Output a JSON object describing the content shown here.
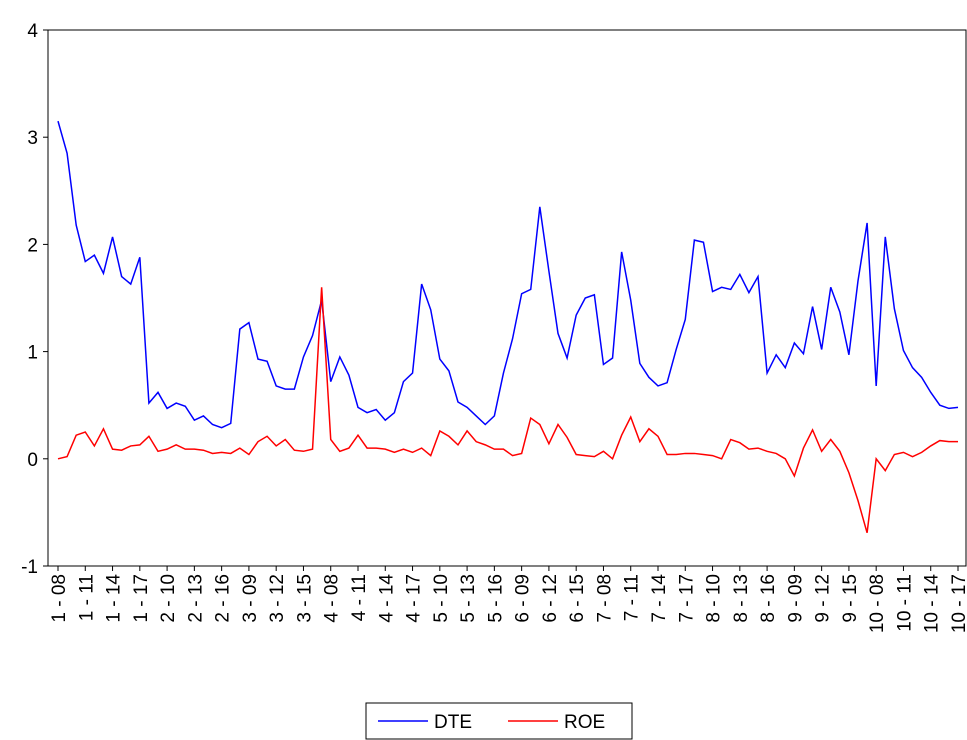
{
  "chart_data": {
    "type": "line",
    "categories": [
      "1 - 08",
      null,
      null,
      "1 - 11",
      null,
      null,
      "1 - 14",
      null,
      null,
      "1 - 17",
      null,
      null,
      "2 - 10",
      null,
      null,
      "2 - 13",
      null,
      null,
      "2 - 16",
      null,
      null,
      "3 - 09",
      null,
      null,
      "3 - 12",
      null,
      null,
      "3 - 15",
      null,
      null,
      "4 - 08",
      null,
      null,
      "4 - 11",
      null,
      null,
      "4 - 14",
      null,
      null,
      "4 - 17",
      null,
      null,
      "5 - 10",
      null,
      null,
      "5 - 13",
      null,
      null,
      "5 - 16",
      null,
      null,
      "6 - 09",
      null,
      null,
      "6 - 12",
      null,
      null,
      "6 - 15",
      null,
      null,
      "7 - 08",
      null,
      null,
      "7 - 11",
      null,
      null,
      "7 - 14",
      null,
      null,
      "7 - 17",
      null,
      null,
      "8 - 10",
      null,
      null,
      "8 - 13",
      null,
      null,
      "8 - 16",
      null,
      null,
      "9 - 09",
      null,
      null,
      "9 - 12",
      null,
      null,
      "9 - 15",
      null,
      null,
      "10 - 08",
      null,
      null,
      "10 - 11",
      null,
      null,
      "10 - 14",
      null,
      null,
      "10 - 17"
    ],
    "series": [
      {
        "name": "DTE",
        "color": "#0000ff",
        "values": [
          3.15,
          2.85,
          2.18,
          1.84,
          1.9,
          1.73,
          2.07,
          1.7,
          1.63,
          1.88,
          0.52,
          0.62,
          0.47,
          0.52,
          0.49,
          0.36,
          0.4,
          0.32,
          0.29,
          0.33,
          1.21,
          1.27,
          0.93,
          0.91,
          0.68,
          0.65,
          0.65,
          0.95,
          1.15,
          1.48,
          0.72,
          0.95,
          0.78,
          0.48,
          0.43,
          0.46,
          0.36,
          0.43,
          0.72,
          0.8,
          1.63,
          1.39,
          0.93,
          0.82,
          0.53,
          0.48,
          0.4,
          0.32,
          0.4,
          0.8,
          1.12,
          1.54,
          1.58,
          2.35,
          1.75,
          1.17,
          0.94,
          1.34,
          1.5,
          1.53,
          0.88,
          0.94,
          1.93,
          1.48,
          0.89,
          0.76,
          0.68,
          0.71,
          1.02,
          1.3,
          2.04,
          2.02,
          1.56,
          1.6,
          1.58,
          1.72,
          1.55,
          1.7,
          0.8,
          0.97,
          0.85,
          1.08,
          0.98,
          1.42,
          1.02,
          1.6,
          1.37,
          0.97,
          1.66,
          2.2,
          0.68,
          2.07,
          1.4,
          1.01,
          0.85,
          0.76,
          0.62,
          0.5,
          0.47,
          0.48
        ]
      },
      {
        "name": "ROE",
        "color": "#ff0000",
        "values": [
          0.0,
          0.02,
          0.22,
          0.25,
          0.12,
          0.28,
          0.09,
          0.08,
          0.12,
          0.13,
          0.21,
          0.07,
          0.09,
          0.13,
          0.09,
          0.09,
          0.08,
          0.05,
          0.06,
          0.05,
          0.1,
          0.04,
          0.16,
          0.21,
          0.12,
          0.18,
          0.08,
          0.07,
          0.09,
          1.6,
          0.18,
          0.07,
          0.1,
          0.22,
          0.1,
          0.1,
          0.09,
          0.06,
          0.09,
          0.06,
          0.1,
          0.03,
          0.26,
          0.21,
          0.13,
          0.26,
          0.16,
          0.13,
          0.09,
          0.09,
          0.03,
          0.05,
          0.38,
          0.32,
          0.14,
          0.32,
          0.2,
          0.04,
          0.03,
          0.02,
          0.07,
          0.0,
          0.22,
          0.39,
          0.16,
          0.28,
          0.21,
          0.04,
          0.04,
          0.05,
          0.05,
          0.04,
          0.03,
          0.0,
          0.18,
          0.15,
          0.09,
          0.1,
          0.07,
          0.05,
          0.0,
          -0.16,
          0.1,
          0.27,
          0.07,
          0.18,
          0.07,
          -0.13,
          -0.39,
          -0.69,
          0.0,
          -0.11,
          0.04,
          0.06,
          0.02,
          0.06,
          0.12,
          0.17,
          0.16,
          0.16
        ]
      }
    ],
    "ylim": [
      -1,
      4
    ],
    "yticks": [
      -1,
      0,
      1,
      2,
      3,
      4
    ],
    "grid": false,
    "legend": "bottom"
  }
}
